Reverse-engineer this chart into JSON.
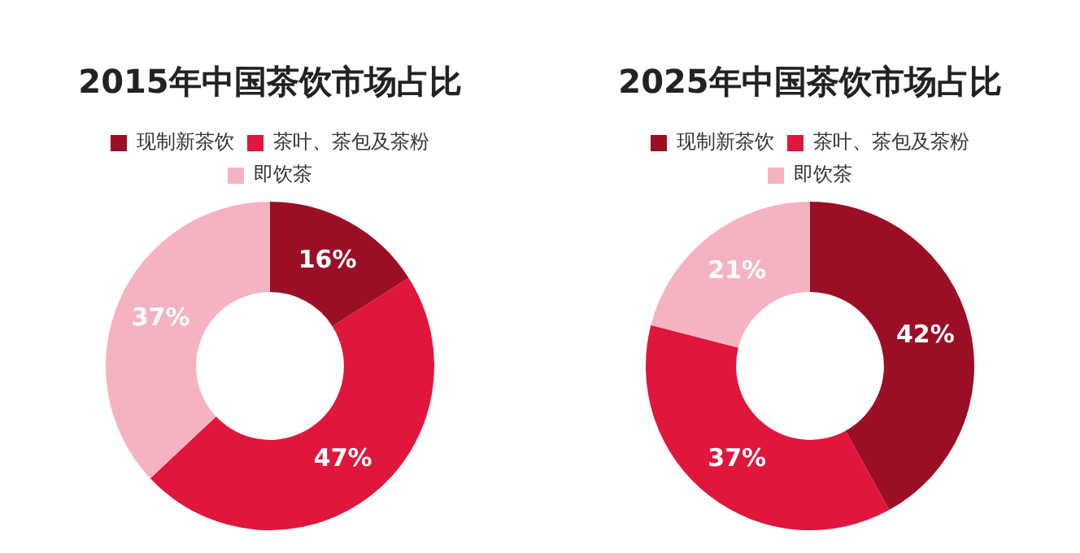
{
  "chart_data": [
    {
      "type": "donut",
      "title": "2015年中国茶饮市场占比",
      "categories": [
        "现制新茶饮",
        "茶叶、茶包及茶粉",
        "即饮茶"
      ],
      "values": [
        16,
        47,
        37
      ],
      "colors": [
        "#9b0f26",
        "#e0163c",
        "#f5b3c2"
      ],
      "value_labels": [
        "16%",
        "47%",
        "37%"
      ],
      "legend": "top"
    },
    {
      "type": "donut",
      "title": "2025年中国茶饮市场占比",
      "categories": [
        "现制新茶饮",
        "茶叶、茶包及茶粉",
        "即饮茶"
      ],
      "values": [
        42,
        37,
        21
      ],
      "colors": [
        "#9b0f26",
        "#e0163c",
        "#f5b3c2"
      ],
      "value_labels": [
        "42%",
        "37%",
        "21%"
      ],
      "legend": "top"
    }
  ]
}
